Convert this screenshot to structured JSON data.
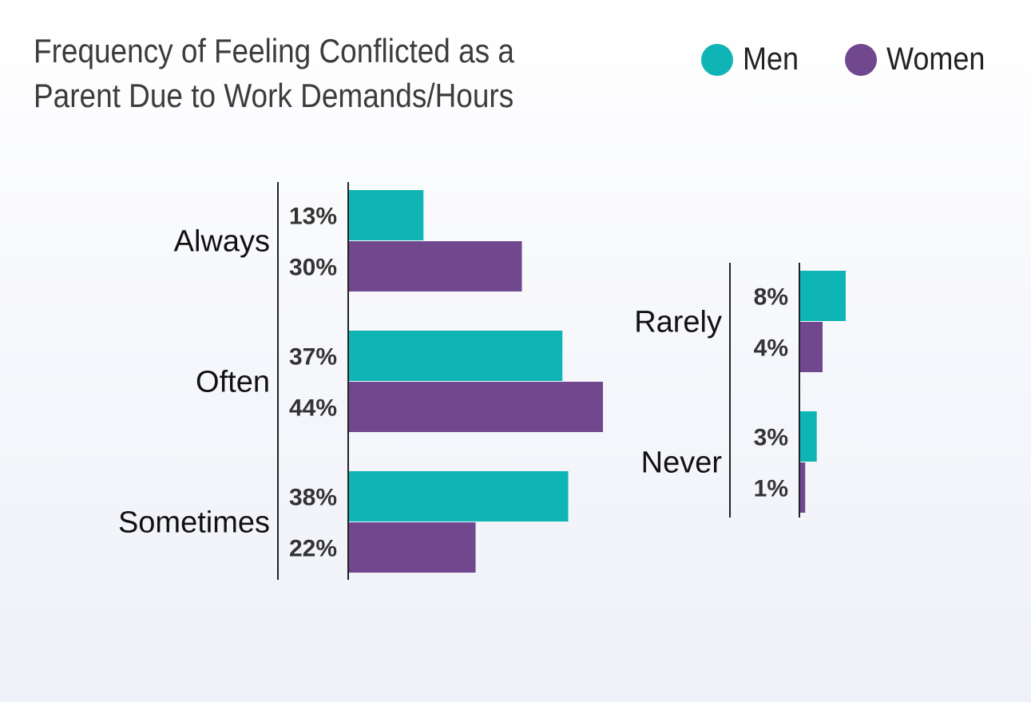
{
  "chart_data": {
    "type": "bar",
    "orientation": "horizontal",
    "title_lines": [
      "Frequency of Feeling Conflicted as a",
      "Parent Due to Work Demands/Hours"
    ],
    "value_format": "%",
    "legend": [
      {
        "name": "Men",
        "color": "#0fb5b4"
      },
      {
        "name": "Women",
        "color": "#71478e"
      }
    ],
    "panels": [
      {
        "categories": [
          "Always",
          "Often",
          "Sometimes"
        ],
        "series": [
          {
            "name": "Men",
            "values": [
              13,
              37,
              38
            ]
          },
          {
            "name": "Women",
            "values": [
              30,
              44,
              22
            ]
          }
        ]
      },
      {
        "categories": [
          "Rarely",
          "Never"
        ],
        "series": [
          {
            "name": "Men",
            "values": [
              8,
              3
            ]
          },
          {
            "name": "Women",
            "values": [
              4,
              1
            ]
          }
        ]
      }
    ]
  }
}
